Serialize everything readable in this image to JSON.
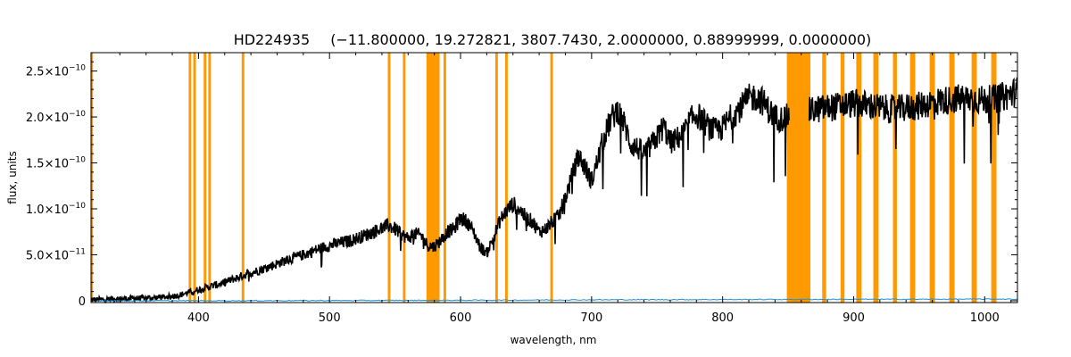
{
  "chart_data": {
    "type": "line",
    "title": "HD224935",
    "subtitle": "(−11.800000, 19.272821, 3807.7430, 2.0000000, 0.88999999, 0.0000000)",
    "xlabel": "wavelength, nm",
    "ylabel": "flux, units",
    "xlim": [
      318,
      1025
    ],
    "ylim": [
      -2e-12,
      2.7e-10
    ],
    "grid": false,
    "x_ticks": [
      400,
      500,
      600,
      700,
      800,
      900,
      1000
    ],
    "y_ticks": [
      {
        "value": 0,
        "mant": "0",
        "exp": ""
      },
      {
        "value": 5e-11,
        "mant": "5.0×10",
        "exp": "−11"
      },
      {
        "value": 1e-10,
        "mant": "1.0×10",
        "exp": "−10"
      },
      {
        "value": 1.5e-10,
        "mant": "1.5×10",
        "exp": "−10"
      },
      {
        "value": 2e-10,
        "mant": "2.0×10",
        "exp": "−10"
      },
      {
        "value": 2.5e-10,
        "mant": "2.5×10",
        "exp": "−10"
      }
    ],
    "series": [
      {
        "color": "#000000",
        "x": [
          318,
          340,
          360,
          375,
          385,
          395,
          405,
          420,
          435,
          450,
          465,
          480,
          495,
          505,
          515,
          525,
          535,
          545,
          550,
          555,
          560,
          565,
          570,
          575,
          580,
          585,
          590,
          595,
          600,
          605,
          610,
          615,
          620,
          625,
          630,
          635,
          640,
          645,
          650,
          655,
          660,
          665,
          670,
          675,
          680,
          685,
          690,
          695,
          700,
          705,
          710,
          715,
          720,
          725,
          730,
          735,
          740,
          745,
          750,
          755,
          760,
          765,
          770,
          775,
          780,
          785,
          790,
          795,
          800,
          805,
          810,
          815,
          820,
          825,
          830,
          835,
          840,
          845,
          850,
          870,
          880,
          890,
          900,
          910,
          920,
          930,
          940,
          950,
          960,
          970,
          980,
          990,
          1000,
          1010,
          1020,
          1025
        ],
        "y": [
          1e-12,
          2e-12,
          3e-12,
          4e-12,
          6e-12,
          1e-11,
          1.4e-11,
          2e-11,
          2.8e-11,
          3.5e-11,
          4.3e-11,
          5e-11,
          5.8e-11,
          6.2e-11,
          6.5e-11,
          7e-11,
          7.6e-11,
          8.2e-11,
          7.8e-11,
          7.2e-11,
          6.8e-11,
          7.3e-11,
          7.1e-11,
          6e-11,
          5.9e-11,
          6.6e-11,
          7.5e-11,
          7.8e-11,
          9e-11,
          8.6e-11,
          7.5e-11,
          5.8e-11,
          5.2e-11,
          6.8e-11,
          8.7e-11,
          9.8e-11,
          1.05e-10,
          1e-10,
          9e-11,
          8.6e-11,
          7.5e-11,
          7.8e-11,
          8.6e-11,
          9.2e-11,
          1.12e-10,
          1.35e-10,
          1.58e-10,
          1.45e-10,
          1.3e-10,
          1.55e-10,
          1.8e-10,
          1.98e-10,
          2.08e-10,
          1.92e-10,
          1.7e-10,
          1.66e-10,
          1.6e-10,
          1.68e-10,
          1.78e-10,
          1.9e-10,
          1.72e-10,
          1.76e-10,
          1.82e-10,
          1.96e-10,
          2.03e-10,
          1.96e-10,
          1.88e-10,
          1.85e-10,
          1.88e-10,
          1.98e-10,
          2.05e-10,
          2.12e-10,
          2.2e-10,
          2.22e-10,
          2.18e-10,
          2.08e-10,
          2e-10,
          1.98e-10,
          2e-10,
          2.08e-10,
          2.1e-10,
          2.12e-10,
          2.15e-10,
          2.13e-10,
          2.1e-10,
          2.08e-10,
          2.1e-10,
          2.12e-10,
          2.16e-10,
          2.18e-10,
          2.2e-10,
          2.2e-10,
          2.18e-10,
          2.2e-10,
          2.25e-10,
          2.28e-10
        ]
      },
      {
        "color": "#1f8fd6",
        "x": [
          318,
          400,
          500,
          600,
          700,
          800,
          900,
          1025
        ],
        "y": [
          0,
          0,
          2e-13,
          5e-13,
          1e-12,
          1.3e-12,
          1.5e-12,
          1.8e-12
        ]
      }
    ],
    "masked_bands": {
      "color": "#ff9900",
      "ranges": [
        [
          318,
          319.5
        ],
        [
          392.5,
          394.5
        ],
        [
          396,
          398
        ],
        [
          404,
          406
        ],
        [
          407.5,
          409.5
        ],
        [
          433,
          435
        ],
        [
          544.5,
          546.5
        ],
        [
          556,
          558
        ],
        [
          574,
          584
        ],
        [
          587,
          589
        ],
        [
          626.5,
          628.5
        ],
        [
          634,
          636
        ],
        [
          668.5,
          670.5
        ],
        [
          849,
          867
        ],
        [
          876,
          879
        ],
        [
          890,
          893
        ],
        [
          902,
          906
        ],
        [
          915,
          919
        ],
        [
          930,
          933
        ],
        [
          943,
          947
        ],
        [
          958,
          962
        ],
        [
          973,
          977
        ],
        [
          990,
          994
        ],
        [
          1005,
          1009
        ]
      ]
    }
  }
}
